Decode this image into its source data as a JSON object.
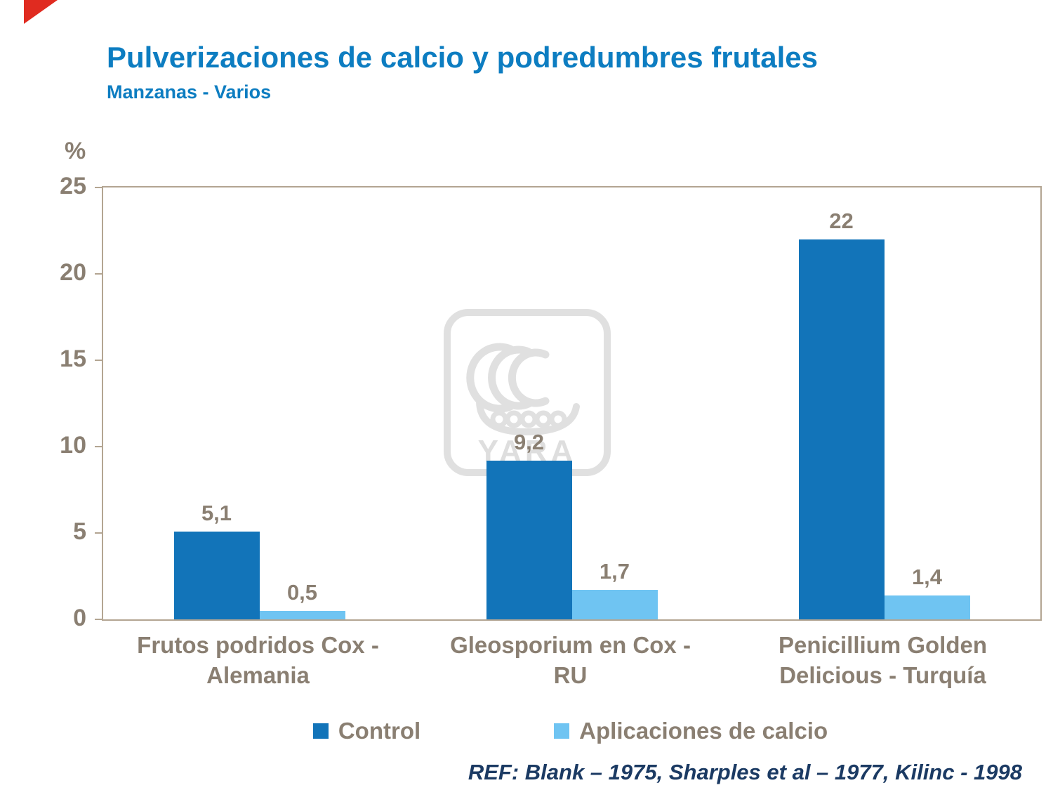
{
  "title": "Pulverizaciones de calcio y podredumbres frutales",
  "subtitle": "Manzanas - Varios",
  "footer": "REF: Blank – 1975, Sharples et al – 1977, Kilinc - 1998",
  "watermark": "YARA",
  "colors": {
    "title": "#0d7dc1",
    "axis_text": "#8a7f72",
    "plot_border": "#b3a592",
    "footer_text": "#1b3a63",
    "corner_accent": "#e02b20",
    "watermark_gray": "#e0e0e0",
    "control_bar": "#1274b9",
    "calcio_bar": "#6fc4f2"
  },
  "chart_data": {
    "type": "bar",
    "title": "Pulverizaciones de calcio y podredumbres frutales",
    "subtitle": "Manzanas - Varios",
    "categories": [
      "Frutos podridos Cox - Alemania",
      "Gleosporium en Cox - RU",
      "Penicillium Golden Delicious - Turquía"
    ],
    "series": [
      {
        "name": "Control",
        "color": "#1274b9",
        "values": [
          5.1,
          9.2,
          22
        ]
      },
      {
        "name": "Aplicaciones de calcio",
        "color": "#6fc4f2",
        "values": [
          0.5,
          1.7,
          1.4
        ]
      }
    ],
    "value_labels": [
      [
        "5,1",
        "0,5"
      ],
      [
        "9,2",
        "1,7"
      ],
      [
        "22",
        "1,4"
      ]
    ],
    "xlabel": "",
    "ylabel": "%",
    "yticks": [
      0,
      5,
      10,
      15,
      20,
      25
    ],
    "ylim": [
      0,
      25
    ],
    "grid": false,
    "legend_position": "bottom"
  }
}
